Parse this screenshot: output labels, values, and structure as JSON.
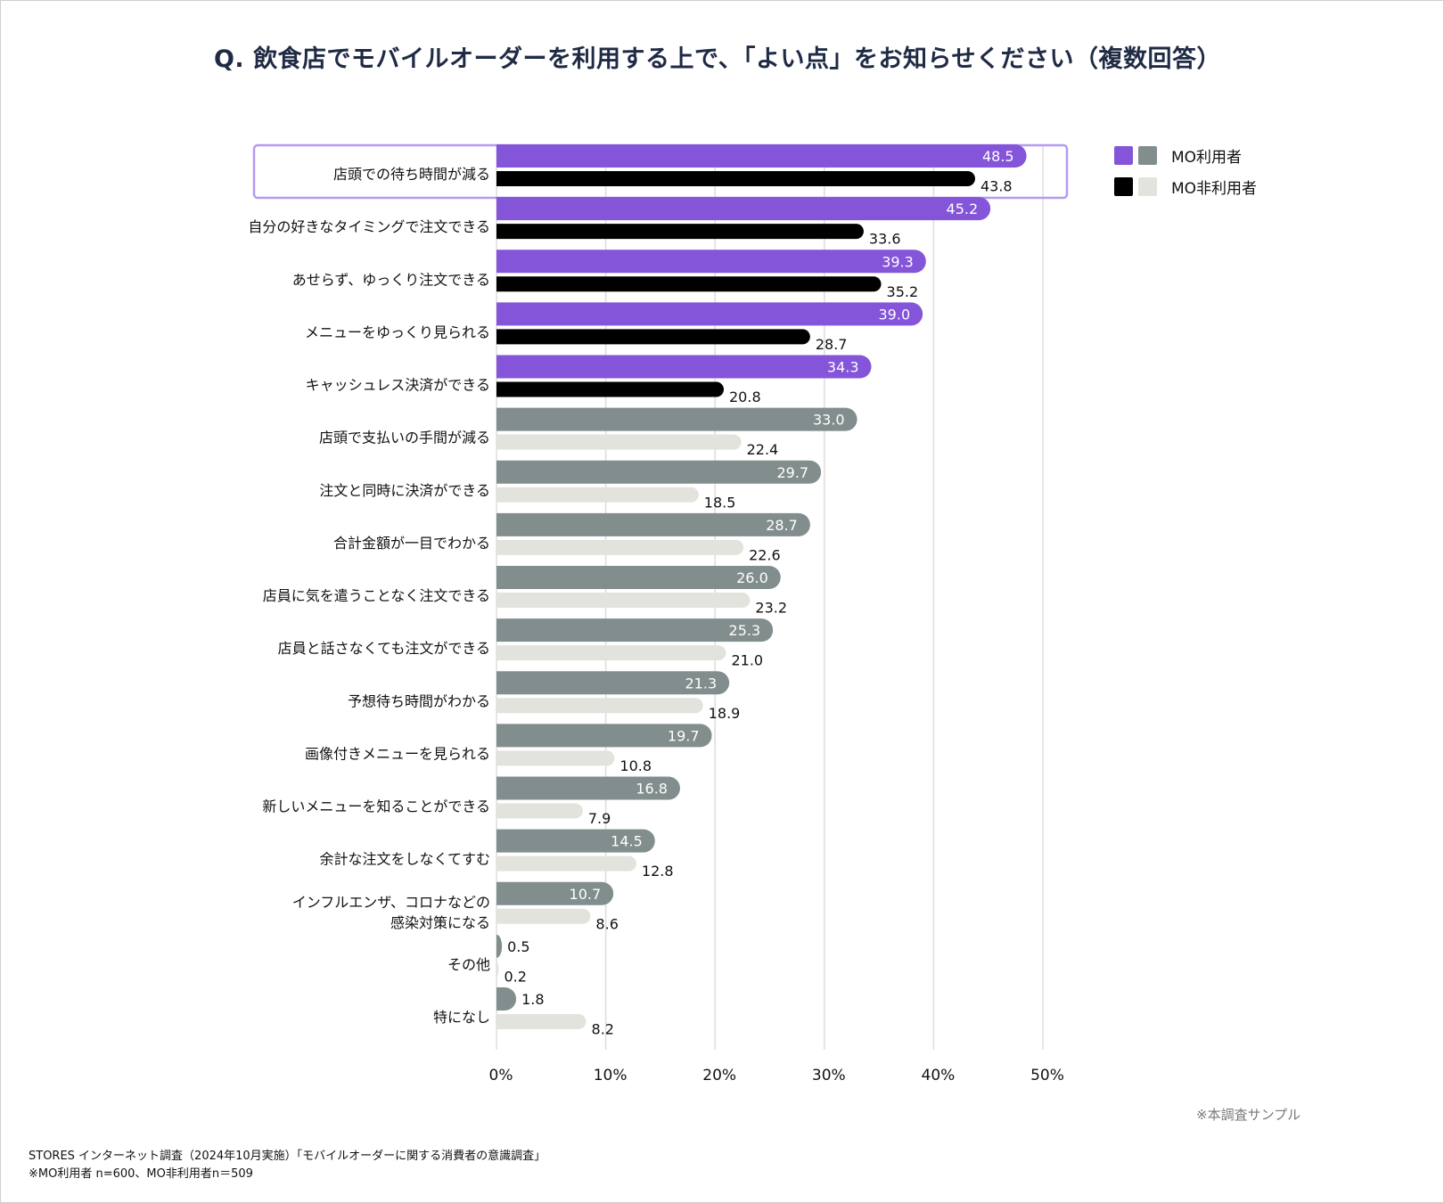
{
  "title": "Q. 飲食店でモバイルオーダーを利用する上で､「よい点」をお知らせください（複数回答）",
  "legend": {
    "user_label": "MO利用者",
    "nonuser_label": "MO非利用者"
  },
  "note_right": "※本調査サンプル",
  "footer": {
    "line1": "STORES インターネット調査（2024年10月実施）「モバイルオーダーに関する消費者の意識調査」",
    "line2": "※MO利用者 n=600、MO非利用者n＝509"
  },
  "colors": {
    "highlight_user": "#8454d9",
    "highlight_nonuser": "#000000",
    "user": "#828d8d",
    "nonuser": "#e3e3de",
    "highlight_box": "#b59af0",
    "grid": "#dddddd"
  },
  "chart_data": {
    "type": "bar",
    "orientation": "horizontal",
    "title": "Q. 飲食店でモバイルオーダーを利用する上で､「よい点」をお知らせください（複数回答）",
    "xlabel": "",
    "ylabel": "",
    "xlim": [
      0,
      50
    ],
    "xticks": [
      "0%",
      "10%",
      "20%",
      "30%",
      "40%",
      "50%"
    ],
    "grid": true,
    "legend_position": "top-right",
    "highlighted_count": 5,
    "boxed_category_index": 0,
    "categories": [
      [
        "店頭での待ち時間が減る"
      ],
      [
        "自分の好きなタイミングで注文できる"
      ],
      [
        "あせらず、ゆっくり注文できる"
      ],
      [
        "メニューをゆっくり見られる"
      ],
      [
        "キャッシュレス決済ができる"
      ],
      [
        "店頭で支払いの手間が減る"
      ],
      [
        "注文と同時に決済ができる"
      ],
      [
        "合計金額が一目でわかる"
      ],
      [
        "店員に気を遣うことなく注文できる"
      ],
      [
        "店員と話さなくても注文ができる"
      ],
      [
        "予想待ち時間がわかる"
      ],
      [
        "画像付きメニューを見られる"
      ],
      [
        "新しいメニューを知ることができる"
      ],
      [
        "余計な注文をしなくてすむ"
      ],
      [
        "インフルエンザ、コロナなどの",
        "感染対策になる"
      ],
      [
        "その他"
      ],
      [
        "特になし"
      ]
    ],
    "series": [
      {
        "name": "MO利用者",
        "values": [
          48.5,
          45.2,
          39.3,
          39.0,
          34.3,
          33.0,
          29.7,
          28.7,
          26.0,
          25.3,
          21.3,
          19.7,
          16.8,
          14.5,
          10.7,
          0.5,
          1.8
        ],
        "labels": [
          "48.5",
          "45.2",
          "39.3",
          "39.0",
          "34.3",
          "33.0",
          "29.7",
          "28.7",
          "26.0",
          "25.3",
          "21.3",
          "19.7",
          "16.8",
          "14.5",
          "10.7",
          "0.5",
          "1.8"
        ]
      },
      {
        "name": "MO非利用者",
        "values": [
          43.8,
          33.6,
          35.2,
          28.7,
          20.8,
          22.4,
          18.5,
          22.6,
          23.2,
          21.0,
          18.9,
          10.8,
          7.9,
          12.8,
          8.6,
          0.2,
          8.2
        ],
        "labels": [
          "43.8",
          "33.6",
          "35.2",
          "28.7",
          "20.8",
          "22.4",
          "18.5",
          "22.6",
          "23.2",
          "21.0",
          "18.9",
          "10.8",
          "7.9",
          "12.8",
          "8.6",
          "0.2",
          "8.2"
        ]
      }
    ]
  }
}
